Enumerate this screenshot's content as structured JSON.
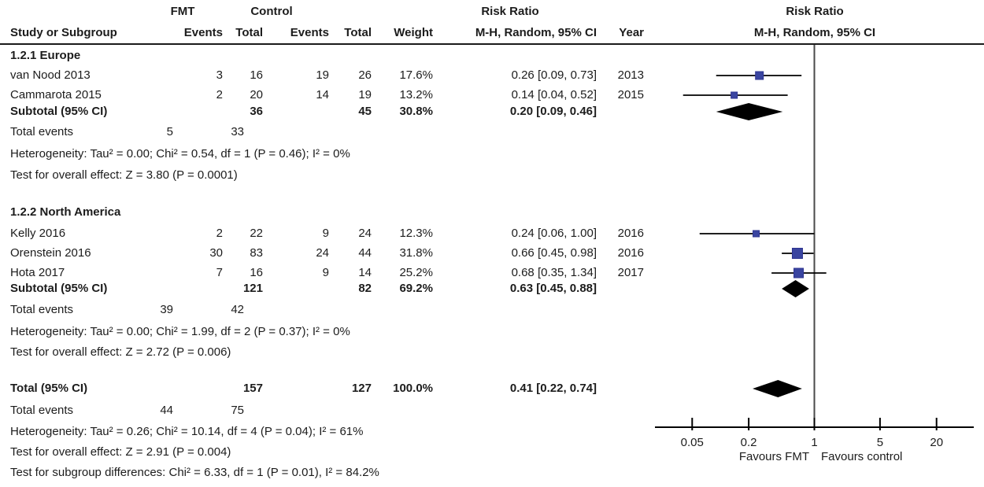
{
  "header": {
    "group_fmt": "FMT",
    "group_control": "Control",
    "col_study": "Study or Subgroup",
    "col_events_fmt": "Events",
    "col_total_fmt": "Total",
    "col_events_ctrl": "Events",
    "col_total_ctrl": "Total",
    "col_weight": "Weight",
    "rr_left_line1": "Risk Ratio",
    "rr_left_line2": "M-H, Random, 95% CI",
    "col_year": "Year",
    "rr_right_line1": "Risk Ratio",
    "rr_right_line2": "M-H, Random, 95% CI"
  },
  "chart_data": {
    "type": "forest",
    "effect_measure": "Risk Ratio",
    "method": "M-H, Random, 95% CI",
    "axis": {
      "scale": "log",
      "tick_labels": [
        "0.05",
        "0.2",
        "1",
        "5",
        "20"
      ],
      "tick_values": [
        0.05,
        0.2,
        1,
        5,
        20
      ],
      "xlim": [
        0.02,
        50
      ],
      "favours_left": "Favours FMT",
      "favours_right": "Favours control"
    },
    "colors": {
      "square": "#3a45a0",
      "square_stroke": "#2e3490",
      "diamond": "#000000",
      "ci_line": "#000000",
      "axis_line": "#000000",
      "null_line": "#4a4a4a"
    },
    "subgroups": [
      {
        "name": "1.2.1 Europe",
        "studies": [
          {
            "study": "van Nood 2013",
            "fmt_events": "3",
            "fmt_total": "16",
            "ctrl_events": "19",
            "ctrl_total": "26",
            "weight": "17.6%",
            "weight_pct": 17.6,
            "rr": 0.26,
            "ci_low": 0.09,
            "ci_high": 0.73,
            "rr_text": "0.26 [0.09, 0.73]",
            "year": "2013"
          },
          {
            "study": "Cammarota 2015",
            "fmt_events": "2",
            "fmt_total": "20",
            "ctrl_events": "14",
            "ctrl_total": "19",
            "weight": "13.2%",
            "weight_pct": 13.2,
            "rr": 0.14,
            "ci_low": 0.04,
            "ci_high": 0.52,
            "rr_text": "0.14 [0.04, 0.52]",
            "year": "2015"
          }
        ],
        "subtotal": {
          "label": "Subtotal (95% CI)",
          "fmt_total": "36",
          "ctrl_total": "45",
          "weight": "30.8%",
          "rr": 0.2,
          "ci_low": 0.09,
          "ci_high": 0.46,
          "rr_text": "0.20 [0.09, 0.46]"
        },
        "total_events": {
          "label": "Total events",
          "fmt": "5",
          "ctrl": "33"
        },
        "heterogeneity": "Heterogeneity: Tau² = 0.00; Chi² = 0.54, df = 1 (P = 0.46); I² = 0%",
        "overall_effect": "Test for overall effect: Z = 3.80 (P = 0.0001)"
      },
      {
        "name": "1.2.2 North America",
        "studies": [
          {
            "study": "Kelly 2016",
            "fmt_events": "2",
            "fmt_total": "22",
            "ctrl_events": "9",
            "ctrl_total": "24",
            "weight": "12.3%",
            "weight_pct": 12.3,
            "rr": 0.24,
            "ci_low": 0.06,
            "ci_high": 1.0,
            "rr_text": "0.24 [0.06, 1.00]",
            "year": "2016"
          },
          {
            "study": "Orenstein 2016",
            "fmt_events": "30",
            "fmt_total": "83",
            "ctrl_events": "24",
            "ctrl_total": "44",
            "weight": "31.8%",
            "weight_pct": 31.8,
            "rr": 0.66,
            "ci_low": 0.45,
            "ci_high": 0.98,
            "rr_text": "0.66 [0.45, 0.98]",
            "year": "2016"
          },
          {
            "study": "Hota 2017",
            "fmt_events": "7",
            "fmt_total": "16",
            "ctrl_events": "9",
            "ctrl_total": "14",
            "weight": "25.2%",
            "weight_pct": 25.2,
            "rr": 0.68,
            "ci_low": 0.35,
            "ci_high": 1.34,
            "rr_text": "0.68 [0.35, 1.34]",
            "year": "2017"
          }
        ],
        "subtotal": {
          "label": "Subtotal (95% CI)",
          "fmt_total": "121",
          "ctrl_total": "82",
          "weight": "69.2%",
          "rr": 0.63,
          "ci_low": 0.45,
          "ci_high": 0.88,
          "rr_text": "0.63 [0.45, 0.88]"
        },
        "total_events": {
          "label": "Total events",
          "fmt": "39",
          "ctrl": "42"
        },
        "heterogeneity": "Heterogeneity: Tau² = 0.00; Chi² = 1.99, df = 2 (P = 0.37); I² = 0%",
        "overall_effect": "Test for overall effect: Z = 2.72 (P = 0.006)"
      }
    ],
    "total": {
      "label": "Total (95% CI)",
      "fmt_total": "157",
      "ctrl_total": "127",
      "weight": "100.0%",
      "rr": 0.41,
      "ci_low": 0.22,
      "ci_high": 0.74,
      "rr_text": "0.41 [0.22, 0.74]",
      "total_events": {
        "label": "Total events",
        "fmt": "44",
        "ctrl": "75"
      },
      "heterogeneity": "Heterogeneity: Tau² = 0.26; Chi² = 10.14, df = 4 (P = 0.04); I² = 61%",
      "overall_effect": "Test for overall effect: Z = 2.91 (P = 0.004)",
      "subgroup_diff": "Test for subgroup differences: Chi² = 6.33, df = 1 (P = 0.01), I² = 84.2%"
    }
  }
}
